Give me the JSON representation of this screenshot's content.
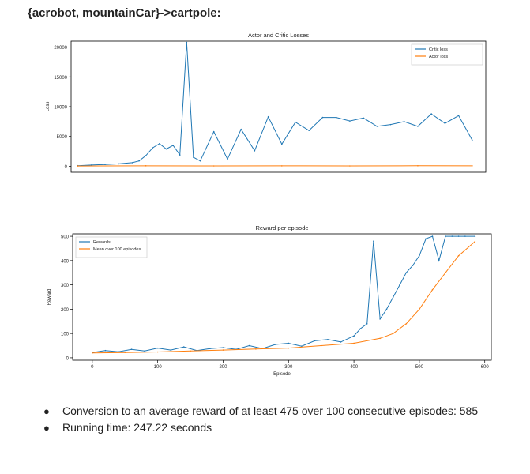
{
  "heading": "{acrobot, mountainCar}->cartpole:",
  "bullets": [
    {
      "text": "Conversion to an average reward of at least 475 over 100 consecutive episodes: 585"
    },
    {
      "text": "Running time: 247.22 seconds"
    }
  ],
  "colors": {
    "series_blue": "#1f77b4",
    "series_orange": "#ff7f0e"
  },
  "chart_data": [
    {
      "type": "line",
      "title": "Actor and Critic Losses",
      "xlabel": "",
      "ylabel": "Loss",
      "xlim": [
        -10,
        600
      ],
      "ylim": [
        -1000,
        21000
      ],
      "y_ticks": [
        0,
        5000,
        10000,
        15000,
        20000
      ],
      "x_ticks": [],
      "legend_position": "top-right",
      "grid": false,
      "series": [
        {
          "name": "Critic loss",
          "color": "#1f77b4",
          "x": [
            0,
            20,
            40,
            60,
            80,
            90,
            100,
            110,
            120,
            130,
            140,
            150,
            160,
            170,
            180,
            200,
            220,
            240,
            260,
            280,
            300,
            320,
            340,
            360,
            380,
            400,
            420,
            440,
            460,
            480,
            500,
            520,
            540,
            560,
            580
          ],
          "y": [
            100,
            200,
            300,
            400,
            600,
            900,
            1800,
            3100,
            3800,
            2900,
            3500,
            1900,
            20800,
            1500,
            900,
            5800,
            1200,
            6200,
            2600,
            8300,
            3700,
            7400,
            6000,
            8200,
            8200,
            7600,
            8100,
            6700,
            7000,
            7500,
            6700,
            8800,
            7200,
            8500,
            4400
          ]
        },
        {
          "name": "Actor loss",
          "color": "#ff7f0e",
          "x": [
            0,
            100,
            200,
            300,
            400,
            500,
            580
          ],
          "y": [
            50,
            80,
            60,
            70,
            60,
            90,
            80
          ]
        }
      ]
    },
    {
      "type": "line",
      "title": "Reward per episode",
      "xlabel": "Episode",
      "ylabel": "Reward",
      "xlim": [
        -30,
        610
      ],
      "ylim": [
        -10,
        510
      ],
      "x_ticks": [
        0,
        100,
        200,
        300,
        400,
        500,
        600
      ],
      "y_ticks": [
        0,
        100,
        200,
        300,
        400,
        500
      ],
      "legend_position": "top-left",
      "grid": false,
      "series": [
        {
          "name": "Rewards",
          "color": "#1f77b4",
          "x": [
            0,
            20,
            40,
            60,
            80,
            100,
            120,
            140,
            160,
            180,
            200,
            220,
            240,
            260,
            280,
            300,
            320,
            340,
            360,
            380,
            400,
            410,
            420,
            430,
            440,
            450,
            460,
            470,
            480,
            490,
            500,
            510,
            520,
            530,
            540,
            550,
            560,
            570,
            585
          ],
          "y": [
            22,
            30,
            25,
            35,
            28,
            40,
            32,
            45,
            30,
            38,
            42,
            35,
            50,
            38,
            55,
            60,
            48,
            70,
            75,
            65,
            90,
            120,
            140,
            480,
            160,
            200,
            250,
            300,
            350,
            380,
            420,
            490,
            500,
            400,
            500,
            500,
            500,
            500,
            500
          ]
        },
        {
          "name": "Mean over 100 episodes",
          "color": "#ff7f0e",
          "x": [
            0,
            50,
            100,
            150,
            200,
            250,
            300,
            350,
            400,
            440,
            460,
            480,
            500,
            520,
            540,
            560,
            585
          ],
          "y": [
            20,
            22,
            24,
            28,
            32,
            36,
            40,
            50,
            60,
            80,
            100,
            140,
            200,
            280,
            350,
            420,
            478
          ]
        }
      ]
    }
  ]
}
